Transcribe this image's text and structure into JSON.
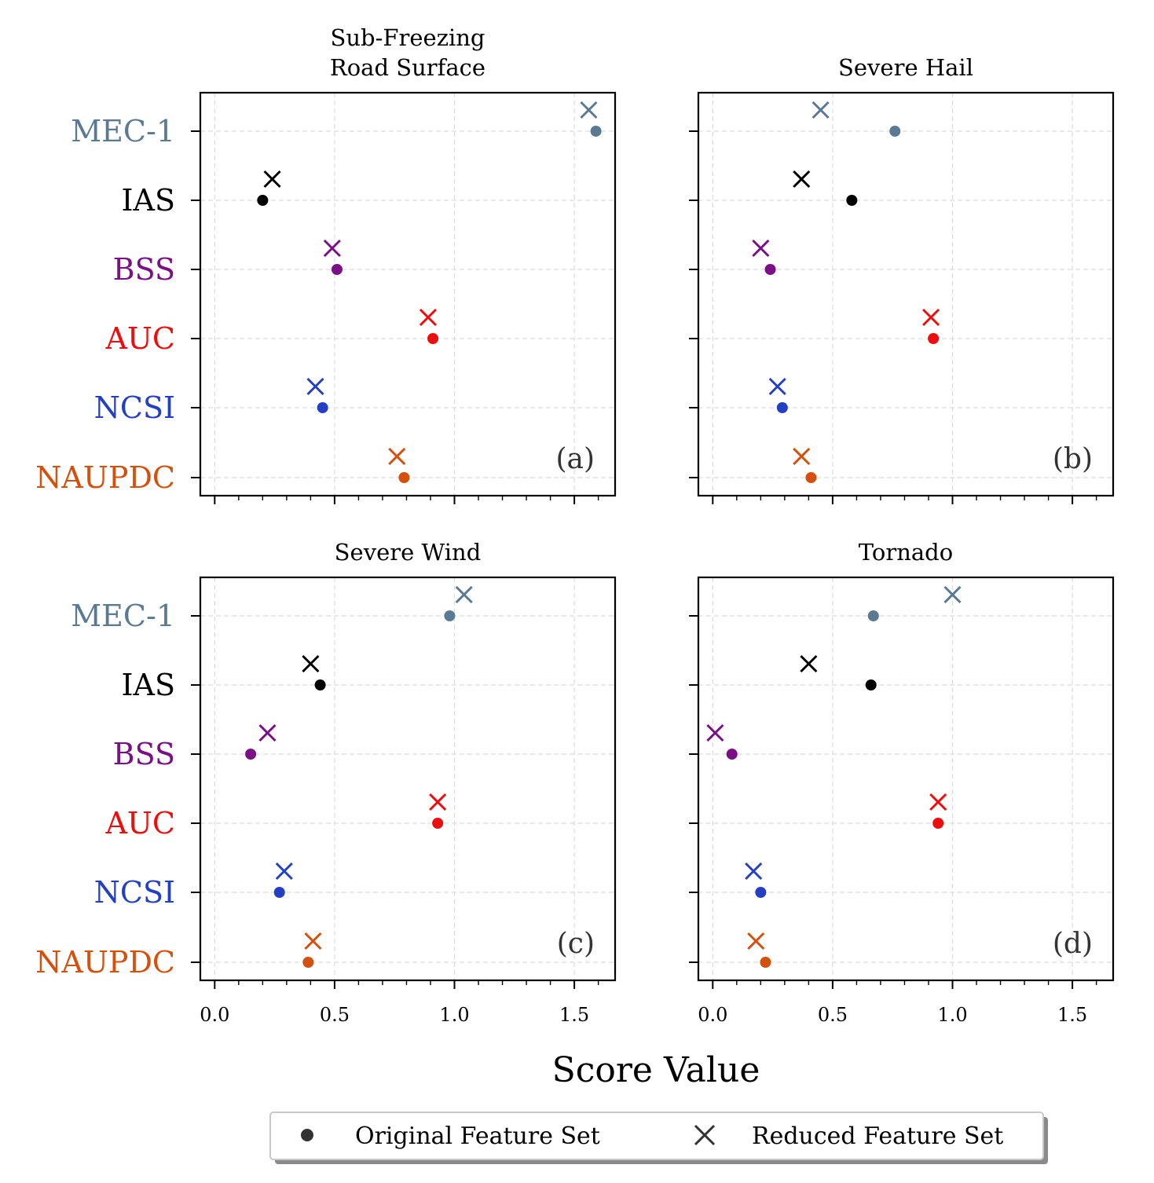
{
  "chart_data": {
    "type": "scatter",
    "xlabel": "Score Value",
    "xlim": [
      -0.06,
      1.67
    ],
    "x_ticks": [
      0.0,
      0.5,
      1.0,
      1.5
    ],
    "x_tick_labels": [
      "0.0",
      "0.5",
      "1.0",
      "1.5"
    ],
    "grid": true,
    "categories": [
      "MEC-1",
      "IAS",
      "BSS",
      "AUC",
      "NCSI",
      "NAUPDC"
    ],
    "category_colors": {
      "MEC-1": "#5a7a93",
      "IAS": "#000000",
      "BSS": "#7b0f86",
      "AUC": "#ee0d0d",
      "NCSI": "#2340c4",
      "NAUPDC": "#d4500d"
    },
    "legend": {
      "position": "bottom-center",
      "entries": [
        {
          "marker": "dot",
          "label": "Original Feature Set"
        },
        {
          "marker": "x",
          "label": "Reduced Feature Set"
        }
      ]
    },
    "panels": [
      {
        "title_lines": [
          "Sub-Freezing",
          "Road Surface"
        ],
        "tag": "(a)",
        "original": {
          "MEC-1": 1.59,
          "IAS": 0.2,
          "BSS": 0.51,
          "AUC": 0.91,
          "NCSI": 0.45,
          "NAUPDC": 0.79
        },
        "reduced": {
          "MEC-1": 1.56,
          "IAS": 0.24,
          "BSS": 0.49,
          "AUC": 0.89,
          "NCSI": 0.42,
          "NAUPDC": 0.76
        }
      },
      {
        "title_lines": [
          "Severe Hail"
        ],
        "tag": "(b)",
        "original": {
          "MEC-1": 0.76,
          "IAS": 0.58,
          "BSS": 0.24,
          "AUC": 0.92,
          "NCSI": 0.29,
          "NAUPDC": 0.41
        },
        "reduced": {
          "MEC-1": 0.45,
          "IAS": 0.37,
          "BSS": 0.2,
          "AUC": 0.91,
          "NCSI": 0.27,
          "NAUPDC": 0.37
        }
      },
      {
        "title_lines": [
          "Severe Wind"
        ],
        "tag": "(c)",
        "original": {
          "MEC-1": 0.98,
          "IAS": 0.44,
          "BSS": 0.15,
          "AUC": 0.93,
          "NCSI": 0.27,
          "NAUPDC": 0.39
        },
        "reduced": {
          "MEC-1": 1.04,
          "IAS": 0.4,
          "BSS": 0.22,
          "AUC": 0.93,
          "NCSI": 0.29,
          "NAUPDC": 0.41
        }
      },
      {
        "title_lines": [
          "Tornado"
        ],
        "tag": "(d)",
        "original": {
          "MEC-1": 0.67,
          "IAS": 0.66,
          "BSS": 0.08,
          "AUC": 0.94,
          "NCSI": 0.2,
          "NAUPDC": 0.22
        },
        "reduced": {
          "MEC-1": 1.0,
          "IAS": 0.4,
          "BSS": 0.01,
          "AUC": 0.94,
          "NCSI": 0.17,
          "NAUPDC": 0.18
        }
      }
    ]
  }
}
